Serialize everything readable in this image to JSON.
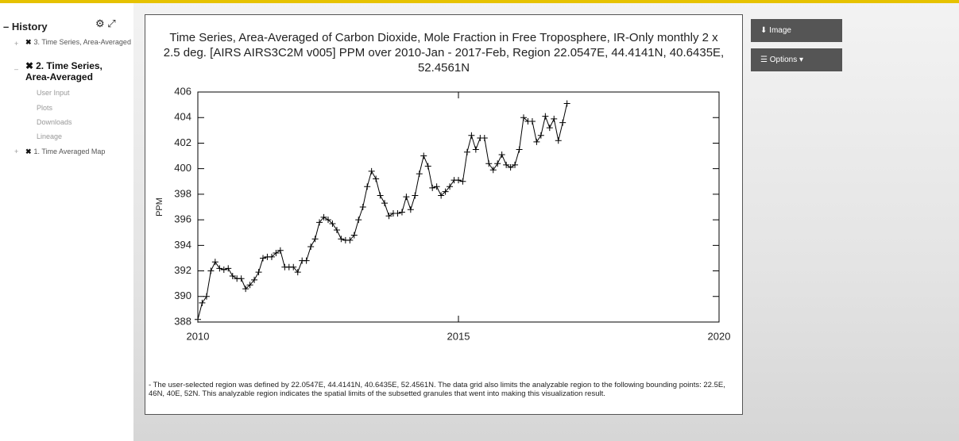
{
  "sidebar": {
    "title": "History",
    "items": [
      {
        "label": "3. Time Series, Area-Averaged"
      },
      {
        "label": "2. Time Series, Area-Averaged",
        "children": [
          "User Input",
          "Plots",
          "Downloads",
          "Lineage"
        ]
      },
      {
        "label": "1. Time Averaged Map"
      }
    ]
  },
  "buttons": [
    "Image",
    "Options"
  ],
  "chart_data": {
    "type": "line",
    "title": "Time Series, Area-Averaged of Carbon Dioxide, Mole Fraction in Free Troposphere, IR-Only monthly 2 x 2.5 deg. [AIRS AIRS3C2M v005] PPM over 2010-Jan - 2017-Feb, Region 22.0547E, 44.4141N, 40.6435E, 52.4561N",
    "y_label": "PPM",
    "x": [
      2010,
      2010.083,
      2010.167,
      2010.25,
      2010.333,
      2010.417,
      2010.5,
      2010.583,
      2010.667,
      2010.75,
      2010.833,
      2010.917,
      2011,
      2011.083,
      2011.167,
      2011.25,
      2011.333,
      2011.417,
      2011.5,
      2011.583,
      2011.667,
      2011.75,
      2011.833,
      2011.917,
      2012,
      2012.083,
      2012.167,
      2012.25,
      2012.333,
      2012.417,
      2012.5,
      2012.583,
      2012.667,
      2012.75,
      2012.833,
      2012.917,
      2013,
      2013.083,
      2013.167,
      2013.25,
      2013.333,
      2013.417,
      2013.5,
      2013.583,
      2013.667,
      2013.75,
      2013.833,
      2013.917,
      2014,
      2014.083,
      2014.167,
      2014.25,
      2014.333,
      2014.417,
      2014.5,
      2014.583,
      2014.667,
      2014.75,
      2014.833,
      2014.917,
      2015,
      2015.083,
      2015.167,
      2015.25,
      2015.333,
      2015.417,
      2015.5,
      2015.583,
      2015.667,
      2015.75,
      2015.833,
      2015.917,
      2016,
      2016.083,
      2016.167,
      2016.25,
      2016.333,
      2016.417,
      2016.5,
      2016.583,
      2016.667,
      2016.75,
      2016.833,
      2016.917,
      2017,
      2017.083
    ],
    "series": [
      {
        "name": "PPM",
        "color": "#000000",
        "values": [
          388.2,
          389.5,
          390.0,
          392.0,
          392.7,
          392.2,
          392.1,
          392.2,
          391.6,
          391.4,
          391.4,
          390.6,
          390.9,
          391.3,
          391.9,
          393.0,
          393.1,
          393.1,
          393.4,
          393.6,
          392.3,
          392.3,
          392.3,
          391.9,
          392.8,
          392.8,
          393.9,
          394.5,
          395.8,
          396.2,
          396.0,
          395.7,
          395.2,
          394.5,
          394.4,
          394.4,
          394.8,
          396.0,
          397.0,
          398.6,
          399.8,
          399.2,
          397.9,
          397.3,
          396.3,
          396.5,
          396.5,
          396.6,
          397.8,
          396.8,
          397.9,
          399.6,
          401.0,
          400.2,
          398.5,
          398.6,
          397.9,
          398.2,
          398.6,
          399.1,
          399.1,
          399.0,
          401.3,
          402.6,
          401.5,
          402.4,
          402.4,
          400.4,
          399.9,
          400.4,
          401.1,
          400.3,
          400.1,
          400.3,
          401.5,
          404.0,
          403.7,
          403.7,
          402.1,
          402.6,
          404.1,
          403.2,
          403.9,
          402.2,
          403.6,
          405.1
        ]
      }
    ],
    "xlim": [
      2010,
      2020
    ],
    "xticks": [
      2010,
      2015,
      2020
    ],
    "ylim": [
      388,
      406
    ],
    "yticks": [
      388,
      390,
      392,
      394,
      396,
      398,
      400,
      402,
      404,
      406
    ],
    "grid": false,
    "marker": "+",
    "footnote": "- The user-selected region was defined by 22.0547E, 44.4141N, 40.6435E, 52.4561N. The data grid also limits the analyzable region to the following bounding points: 22.5E, 46N, 40E, 52N. This analyzable region indicates the spatial limits of the subsetted granules that went into making this visualization result."
  }
}
